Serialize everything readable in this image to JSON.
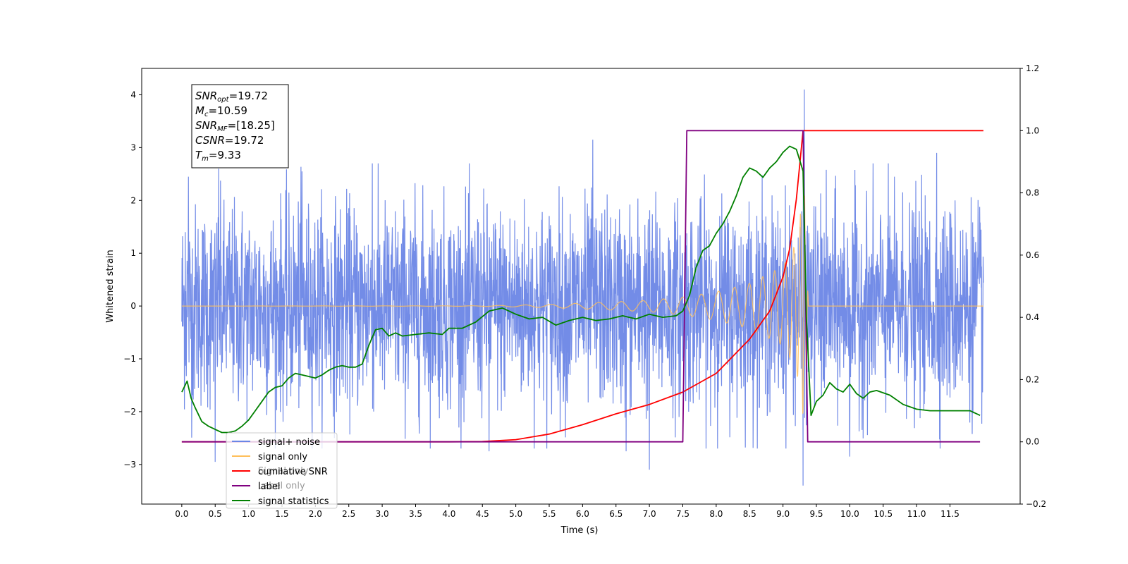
{
  "chart_data": {
    "type": "line",
    "xlabel": "Time (s)",
    "ylabel": "Whitened strain",
    "xlim": [
      -0.6,
      12.55
    ],
    "ylim": [
      -3.75,
      4.5
    ],
    "y2lim": [
      -0.2,
      1.2
    ],
    "x_ticks": [
      "0.0",
      "0.5",
      "1.0",
      "1.5",
      "2.0",
      "2.5",
      "3.0",
      "3.5",
      "4.0",
      "4.5",
      "5.0",
      "5.5",
      "6.0",
      "6.5",
      "7.0",
      "7.5",
      "8.0",
      "8.5",
      "9.0",
      "9.5",
      "10.0",
      "10.5",
      "11.0",
      "11.5"
    ],
    "y_ticks": [
      "-3",
      "-2",
      "-1",
      "0",
      "1",
      "2",
      "3",
      "4"
    ],
    "y2_ticks": [
      "-0.2",
      "0.0",
      "0.2",
      "0.4",
      "0.6",
      "0.8",
      "1.0",
      "1.2"
    ],
    "annotation": {
      "lines": [
        {
          "base": "SNR",
          "sub": "opt",
          "rest": "=19.72"
        },
        {
          "base": "M",
          "sub": "c",
          "rest": "=10.59"
        },
        {
          "base": "SNR",
          "sub": "MF",
          "rest": "=[18.25]"
        },
        {
          "base": "CSNR",
          "sub": "",
          "rest": "=19.72"
        },
        {
          "base": "T",
          "sub": "m",
          "rest": "=9.33"
        }
      ]
    },
    "legend": {
      "position": "lower-left",
      "entries": [
        {
          "label": "signal+ noise",
          "color": "#6b86e6"
        },
        {
          "label": "signal only",
          "color": "#ffbf5a"
        },
        {
          "label": "cumilative SNR",
          "color": "#ff0000"
        },
        {
          "label": "label",
          "color": "#800080"
        },
        {
          "label": "signal statistics",
          "color": "#008000"
        }
      ],
      "ghost_text": [
        "Signal only",
        "Label only"
      ]
    },
    "series": [
      {
        "name": "signal+ noise",
        "axis": "left",
        "color": "#6b86e6",
        "style": "noise",
        "x_range": [
          0.0,
          12.0
        ],
        "noise_sigma": 0.95,
        "peaks": [
          [
            0.05,
            1.4
          ],
          [
            0.1,
            2.45
          ],
          [
            0.55,
            2.6
          ],
          [
            1.8,
            2.55
          ],
          [
            2.85,
            2.7
          ],
          [
            6.15,
            3.15
          ],
          [
            9.32,
            4.1
          ],
          [
            11.3,
            2.9
          ],
          [
            9.3,
            -3.4
          ],
          [
            7.0,
            -3.1
          ],
          [
            10.0,
            -2.85
          ],
          [
            0.5,
            -2.95
          ],
          [
            4.6,
            -2.75
          ],
          [
            6.65,
            -2.75
          ]
        ]
      },
      {
        "name": "signal only",
        "axis": "left",
        "color": "#ffbf5a",
        "style": "chirp",
        "x": [
          0.0,
          4.5,
          5.5,
          6.5,
          7.0,
          7.5,
          8.0,
          8.5,
          9.0,
          9.2,
          9.32,
          9.38,
          12.0
        ],
        "amplitude": [
          0.0,
          0.005,
          0.03,
          0.08,
          0.11,
          0.17,
          0.27,
          0.43,
          0.75,
          1.2,
          2.3,
          0.0,
          0.0
        ]
      },
      {
        "name": "cumilative SNR",
        "axis": "right",
        "color": "#ff0000",
        "x": [
          0.0,
          4.0,
          4.5,
          5.0,
          5.5,
          6.0,
          6.5,
          7.0,
          7.5,
          8.0,
          8.5,
          8.8,
          9.0,
          9.1,
          9.2,
          9.3,
          9.33,
          12.0
        ],
        "values": [
          0.0,
          0.0,
          0.001,
          0.007,
          0.025,
          0.055,
          0.09,
          0.12,
          0.16,
          0.22,
          0.33,
          0.42,
          0.53,
          0.62,
          0.78,
          1.0,
          1.0,
          1.0
        ]
      },
      {
        "name": "label",
        "axis": "right",
        "color": "#800080",
        "x": [
          0.0,
          7.5,
          7.56,
          9.3,
          9.37,
          11.95
        ],
        "values": [
          0.0,
          0.0,
          1.0,
          1.0,
          0.0,
          0.0
        ]
      },
      {
        "name": "signal statistics",
        "axis": "right",
        "color": "#008000",
        "x": [
          0.0,
          0.08,
          0.14,
          0.2,
          0.3,
          0.4,
          0.5,
          0.6,
          0.7,
          0.8,
          0.9,
          1.0,
          1.1,
          1.2,
          1.3,
          1.4,
          1.5,
          1.6,
          1.7,
          1.8,
          1.9,
          2.0,
          2.1,
          2.2,
          2.3,
          2.4,
          2.5,
          2.6,
          2.7,
          2.8,
          2.9,
          3.0,
          3.1,
          3.2,
          3.3,
          3.5,
          3.7,
          3.9,
          4.0,
          4.2,
          4.4,
          4.6,
          4.8,
          5.0,
          5.2,
          5.4,
          5.6,
          5.8,
          6.0,
          6.2,
          6.4,
          6.6,
          6.8,
          7.0,
          7.2,
          7.4,
          7.5,
          7.6,
          7.7,
          7.8,
          7.9,
          8.0,
          8.1,
          8.2,
          8.3,
          8.4,
          8.5,
          8.6,
          8.7,
          8.8,
          8.9,
          9.0,
          9.1,
          9.2,
          9.3,
          9.35,
          9.42,
          9.5,
          9.6,
          9.7,
          9.8,
          9.9,
          10.0,
          10.1,
          10.2,
          10.3,
          10.4,
          10.6,
          10.8,
          11.0,
          11.2,
          11.4,
          11.6,
          11.8,
          11.95
        ],
        "values": [
          0.16,
          0.195,
          0.14,
          0.11,
          0.065,
          0.05,
          0.04,
          0.03,
          0.03,
          0.035,
          0.05,
          0.07,
          0.1,
          0.13,
          0.16,
          0.175,
          0.18,
          0.205,
          0.22,
          0.215,
          0.21,
          0.205,
          0.215,
          0.23,
          0.24,
          0.245,
          0.24,
          0.24,
          0.25,
          0.31,
          0.36,
          0.365,
          0.34,
          0.35,
          0.34,
          0.345,
          0.35,
          0.345,
          0.365,
          0.365,
          0.385,
          0.42,
          0.43,
          0.41,
          0.395,
          0.4,
          0.375,
          0.39,
          0.4,
          0.39,
          0.395,
          0.405,
          0.395,
          0.41,
          0.4,
          0.405,
          0.42,
          0.47,
          0.56,
          0.615,
          0.63,
          0.67,
          0.7,
          0.74,
          0.79,
          0.85,
          0.88,
          0.87,
          0.85,
          0.88,
          0.9,
          0.93,
          0.95,
          0.94,
          0.87,
          0.4,
          0.085,
          0.13,
          0.15,
          0.19,
          0.17,
          0.16,
          0.185,
          0.155,
          0.14,
          0.16,
          0.165,
          0.15,
          0.12,
          0.105,
          0.1,
          0.1,
          0.1,
          0.1,
          0.085
        ]
      }
    ]
  }
}
